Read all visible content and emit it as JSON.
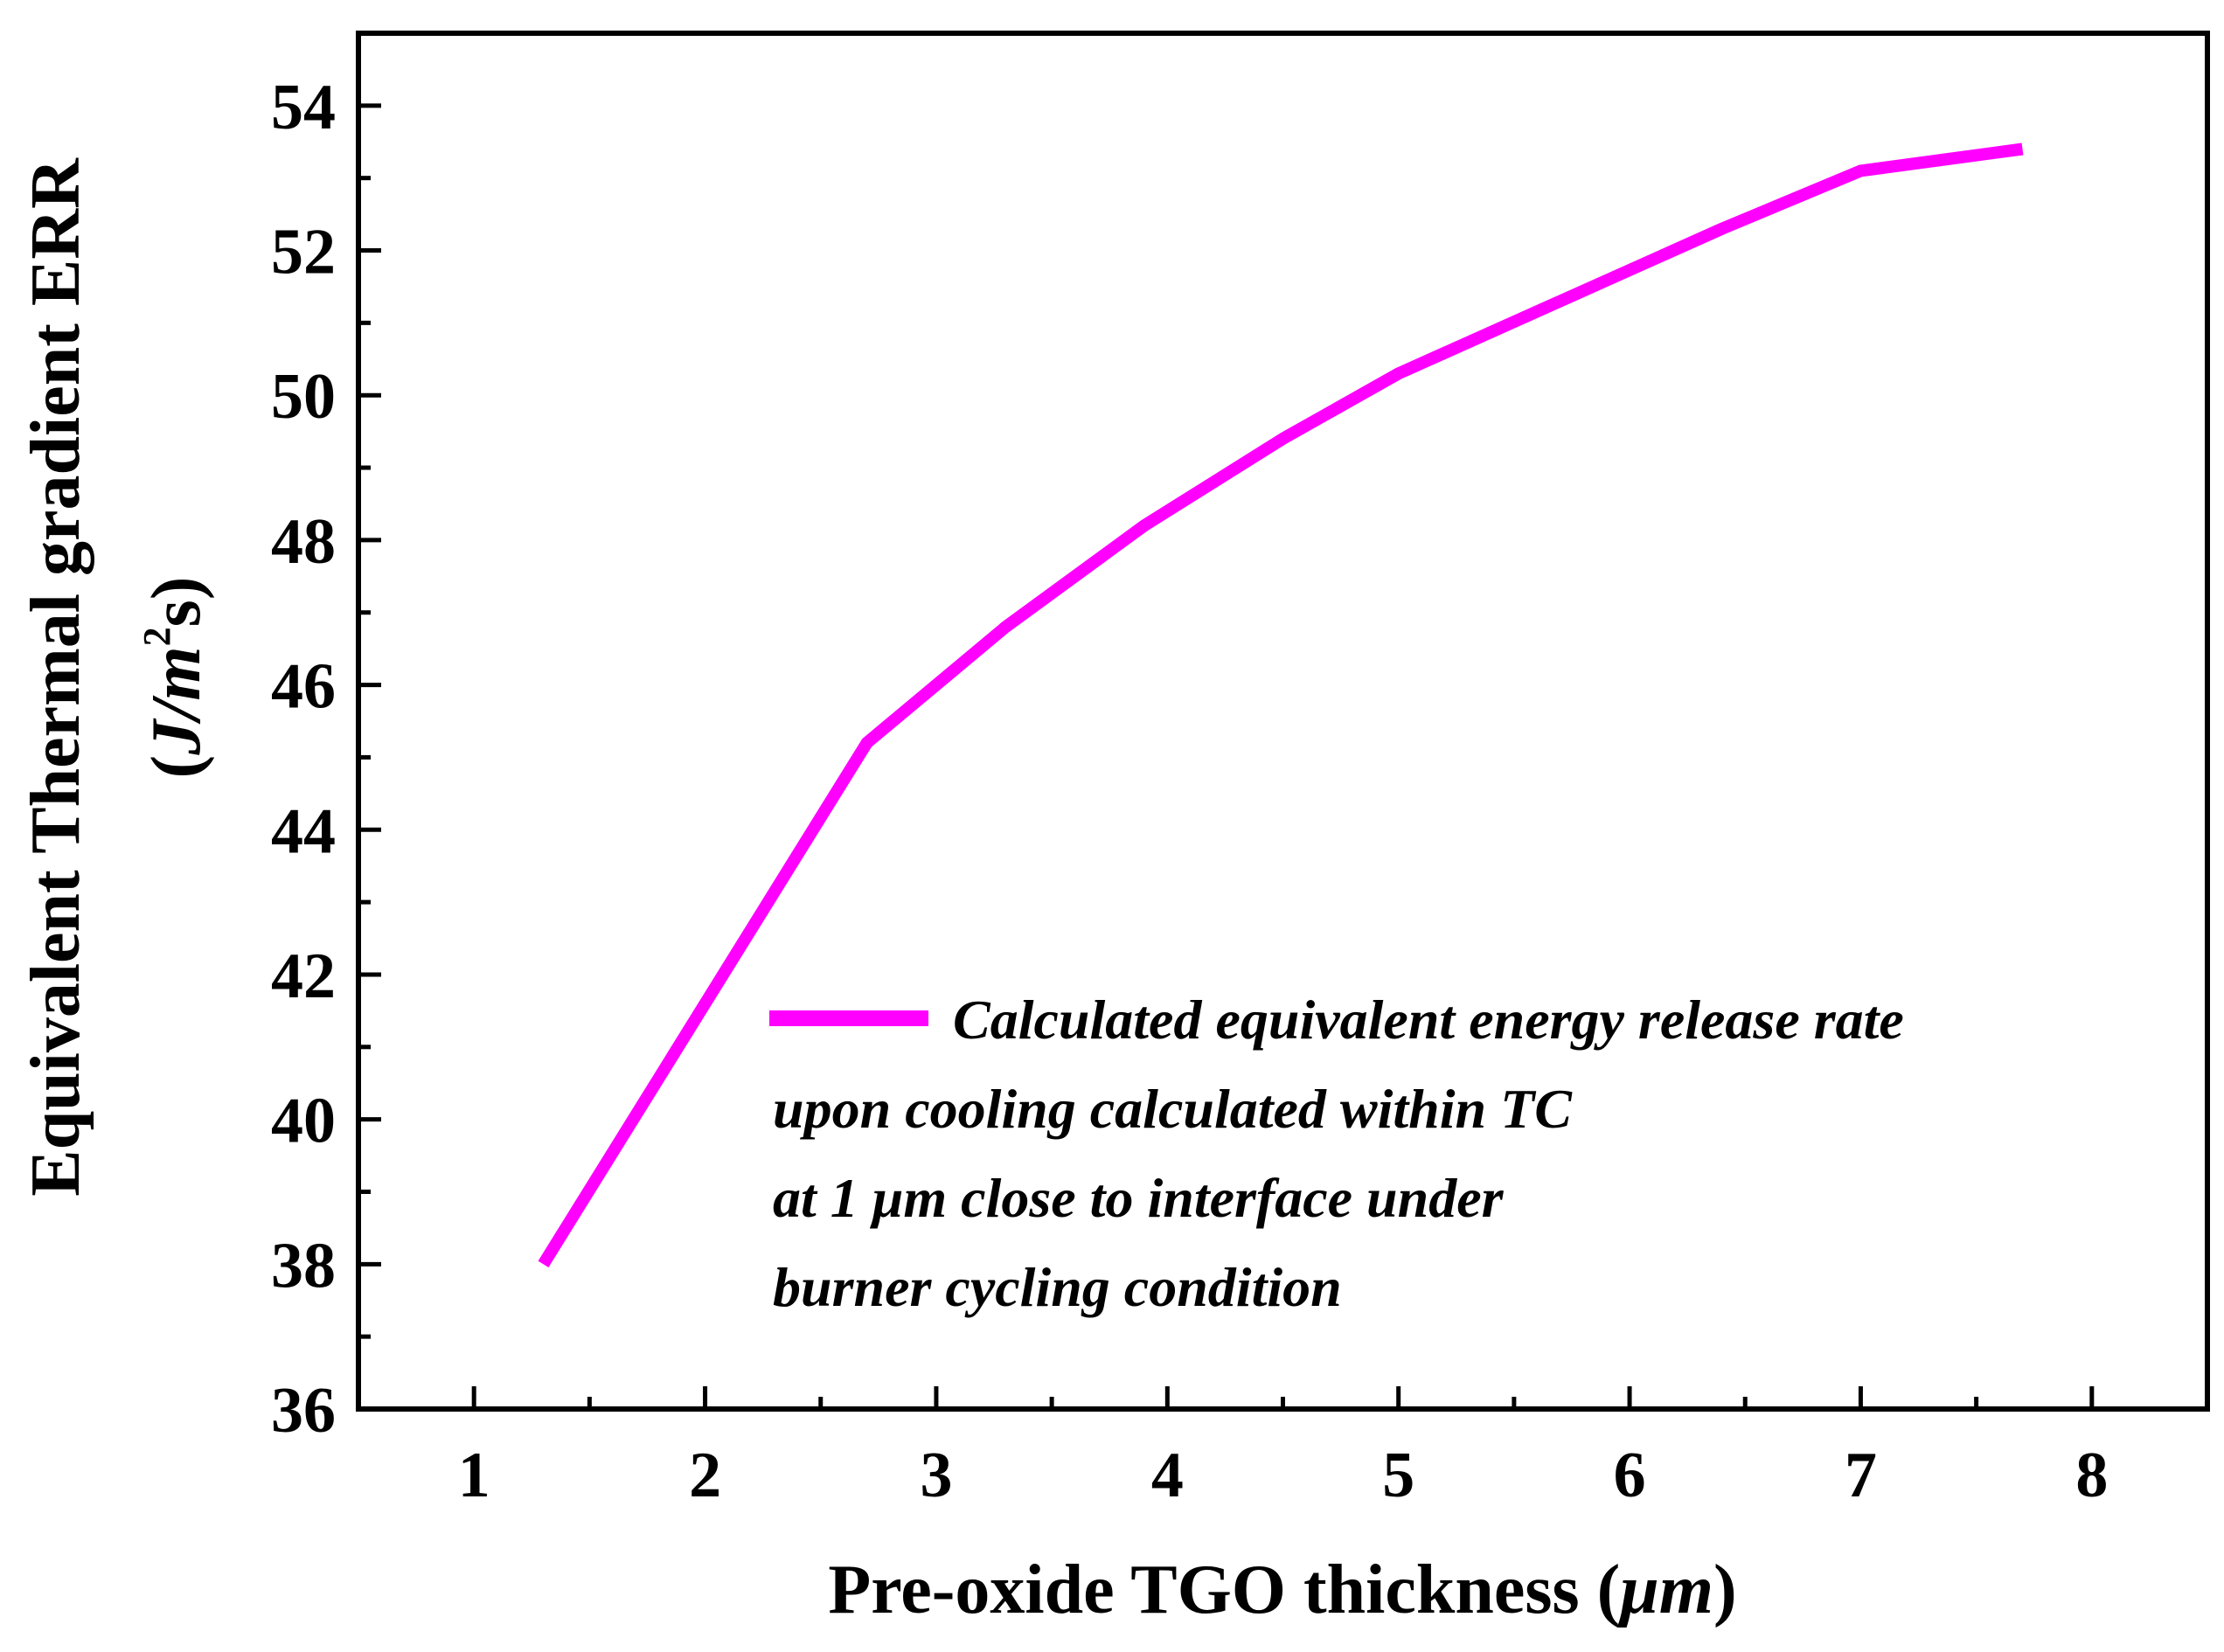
{
  "chart_data": {
    "type": "line",
    "xlabel_main": "Pre-oxide TGO thickness (",
    "xlabel_unit": "μm",
    "xlabel_close": ")",
    "ylabel_line1": "Equivalent Thermal gradient ERR",
    "ylabel_line2_open": "(",
    "ylabel_line2_unit": "J/m",
    "ylabel_line2_sup": "2",
    "ylabel_line2_close": "s)",
    "xlim": [
      0.5,
      8.5
    ],
    "ylim": [
      36,
      55
    ],
    "x_ticks": [
      1,
      2,
      3,
      4,
      5,
      6,
      7,
      8
    ],
    "x_tick_labels": [
      "1",
      "2",
      "3",
      "4",
      "5",
      "6",
      "7",
      "8"
    ],
    "y_ticks": [
      36,
      38,
      40,
      42,
      44,
      46,
      48,
      50,
      52,
      54
    ],
    "y_tick_labels": [
      "36",
      "38",
      "40",
      "42",
      "44",
      "46",
      "48",
      "50",
      "52",
      "54"
    ],
    "series": [
      {
        "name": "Calculated equivalent energy release rate upon cooling calculated within TC at 1 μm close to interface under burner cycling condition",
        "color": "#ff00ff",
        "x": [
          1.3,
          2.0,
          2.7,
          3.3,
          3.9,
          4.5,
          5.0,
          5.7,
          6.4,
          7.0,
          7.7
        ],
        "y": [
          38.0,
          41.6,
          45.2,
          46.8,
          48.2,
          49.4,
          50.3,
          51.3,
          52.3,
          53.1,
          53.4
        ]
      }
    ],
    "legend": {
      "position": "lower-right",
      "lines": [
        "Calculated equivalent energy release rate",
        "upon cooling calculated within TC",
        "at 1 μm close to interface under",
        "burner cycling condition"
      ]
    }
  }
}
